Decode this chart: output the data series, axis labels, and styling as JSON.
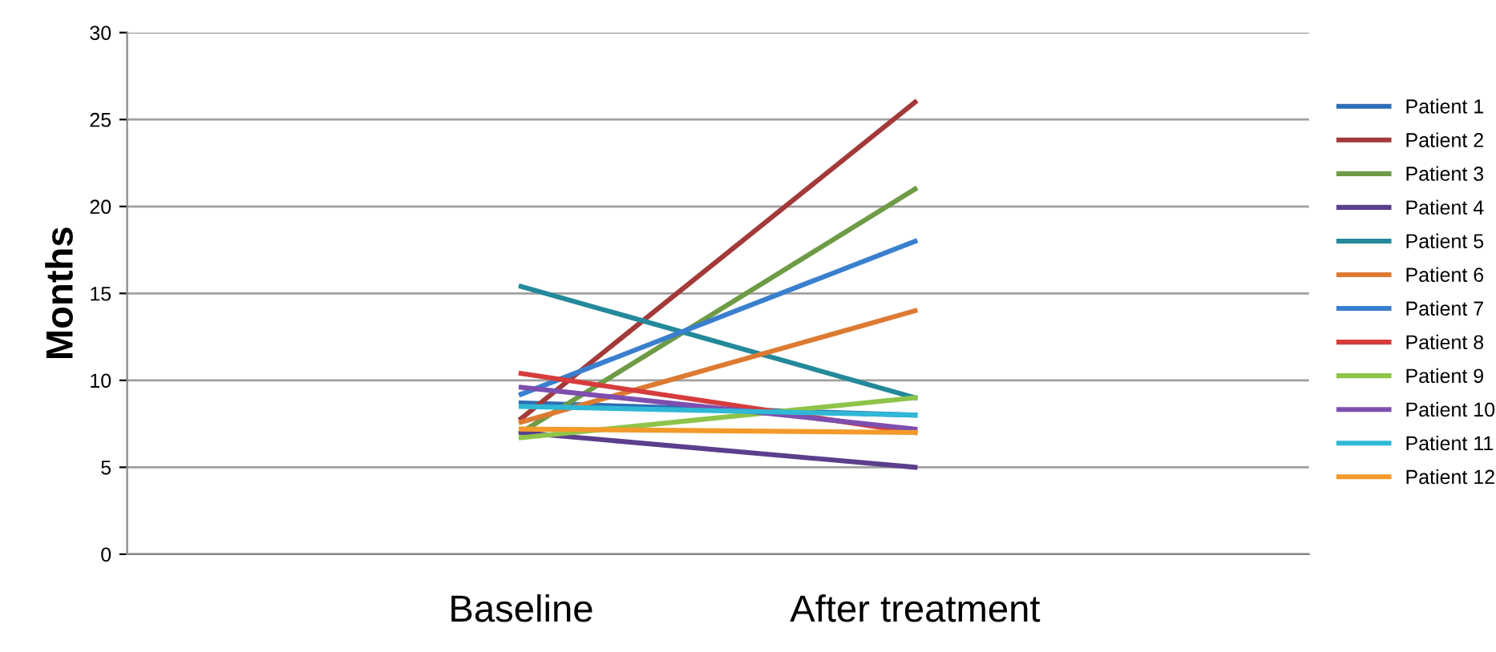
{
  "chart_data": {
    "type": "line",
    "ylabel": "Months",
    "categories": [
      "Baseline",
      "After treatment"
    ],
    "ylim": [
      0,
      30
    ],
    "yticks": [
      0,
      5,
      10,
      15,
      20,
      25,
      30
    ],
    "grid": "y",
    "legend": "right",
    "marker": "none",
    "line_style": "solid",
    "series": [
      {
        "name": "Patient 1",
        "color": "#2e6db4",
        "values": [
          8.7,
          8
        ]
      },
      {
        "name": "Patient 2",
        "color": "#a33a3a",
        "values": [
          7.8,
          26
        ]
      },
      {
        "name": "Patient 3",
        "color": "#6e9b45",
        "values": [
          7,
          21
        ]
      },
      {
        "name": "Patient 4",
        "color": "#5b3f8c",
        "values": [
          7,
          5
        ]
      },
      {
        "name": "Patient 5",
        "color": "#24899a",
        "values": [
          15.4,
          9
        ]
      },
      {
        "name": "Patient 6",
        "color": "#dd7a32",
        "values": [
          7.6,
          14
        ]
      },
      {
        "name": "Patient 7",
        "color": "#3a7fce",
        "values": [
          9.2,
          18
        ]
      },
      {
        "name": "Patient 8",
        "color": "#d63c3c",
        "values": [
          10.4,
          7
        ]
      },
      {
        "name": "Patient 9",
        "color": "#8ec449",
        "values": [
          6.7,
          9
        ]
      },
      {
        "name": "Patient 10",
        "color": "#7e4fae",
        "values": [
          9.6,
          7.2
        ]
      },
      {
        "name": "Patient 11",
        "color": "#2fb8d6",
        "values": [
          8.5,
          8
        ]
      },
      {
        "name": "Patient 12",
        "color": "#f39a2b",
        "values": [
          7.2,
          7
        ]
      }
    ]
  }
}
